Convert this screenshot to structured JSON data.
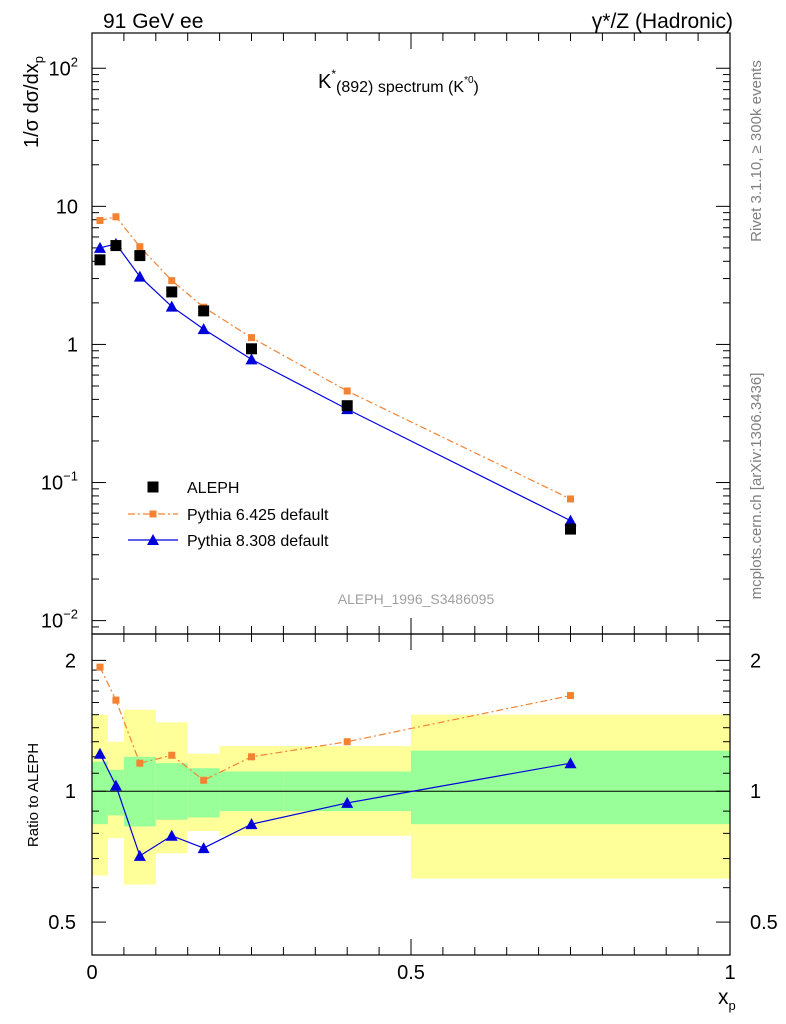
{
  "header": {
    "left": "91 GeV ee",
    "right": "γ*/Z (Hadronic)"
  },
  "side_labels": {
    "rivet": "Rivet 3.1.10, ≥ 300k events",
    "mcplots": "mcplots.cern.ch [arXiv:1306.3436]"
  },
  "analysis_tag": "ALEPH_1996_S3486095",
  "chart_data": [
    {
      "type": "scatter",
      "panel": "main",
      "title": "K*(892) spectrum (K*0)",
      "title_parts": {
        "main": "K",
        "sup1": "*",
        "paren": "(892) spectrum (K",
        "sup2": "*0",
        "close": ")"
      },
      "ylabel": "1/σ dσ/dx_p",
      "ylabel_parts": {
        "base": "1/σ dσ/dx",
        "sub": "p"
      },
      "xlim": [
        0,
        1
      ],
      "ylim": [
        0.008,
        180
      ],
      "yscale": "log",
      "yticks": [
        {
          "v": 0.01,
          "base": "10",
          "exp": "−2"
        },
        {
          "v": 0.1,
          "base": "10",
          "exp": "−1"
        },
        {
          "v": 1,
          "label": "1"
        },
        {
          "v": 10,
          "label": "10"
        },
        {
          "v": 100,
          "base": "10",
          "exp": "2"
        }
      ],
      "legend_position": "lower-left",
      "series": [
        {
          "name": "ALEPH",
          "marker": "square",
          "color": "#000000",
          "x": [
            0.0125,
            0.0375,
            0.075,
            0.125,
            0.175,
            0.25,
            0.4,
            0.75
          ],
          "y": [
            4.1,
            5.2,
            4.4,
            2.4,
            1.75,
            0.93,
            0.36,
            0.046
          ]
        },
        {
          "name": "Pythia 6.425 default",
          "marker": "square-small",
          "line": "dash-dot",
          "color": "#f58231",
          "x": [
            0.0125,
            0.0375,
            0.075,
            0.125,
            0.175,
            0.25,
            0.4,
            0.75
          ],
          "y": [
            7.9,
            8.4,
            5.1,
            2.9,
            1.86,
            1.12,
            0.46,
            0.076
          ]
        },
        {
          "name": "Pythia 8.308 default",
          "marker": "triangle",
          "line": "solid",
          "color": "#0000dd",
          "x": [
            0.0125,
            0.0375,
            0.075,
            0.125,
            0.175,
            0.25,
            0.4,
            0.75
          ],
          "y": [
            5.0,
            5.35,
            3.1,
            1.88,
            1.29,
            0.78,
            0.34,
            0.053
          ]
        }
      ]
    },
    {
      "type": "scatter",
      "panel": "ratio",
      "ylabel": "Ratio to ALEPH",
      "xlabel": "x_p",
      "xlabel_parts": {
        "base": "x",
        "sub": "p"
      },
      "xlim": [
        0,
        1
      ],
      "ylim": [
        0.42,
        2.3
      ],
      "yscale": "log",
      "xticks": [
        {
          "v": 0,
          "label": "0"
        },
        {
          "v": 0.5,
          "label": "0.5"
        },
        {
          "v": 1,
          "label": "1"
        }
      ],
      "yticks": [
        {
          "v": 0.5,
          "label": "0.5"
        },
        {
          "v": 1,
          "label": "1"
        },
        {
          "v": 2,
          "label": "2"
        }
      ],
      "bands": [
        {
          "x0": 0.0,
          "x1": 0.025,
          "y_lo": 0.64,
          "y_hi": 1.5,
          "g_lo": 0.84,
          "g_hi": 1.17
        },
        {
          "x0": 0.025,
          "x1": 0.05,
          "y_lo": 0.78,
          "y_hi": 1.3,
          "g_lo": 0.88,
          "g_hi": 1.12
        },
        {
          "x0": 0.05,
          "x1": 0.1,
          "y_lo": 0.61,
          "y_hi": 1.54,
          "g_lo": 0.83,
          "g_hi": 1.2
        },
        {
          "x0": 0.1,
          "x1": 0.15,
          "y_lo": 0.72,
          "y_hi": 1.44,
          "g_lo": 0.86,
          "g_hi": 1.16
        },
        {
          "x0": 0.15,
          "x1": 0.2,
          "y_lo": 0.81,
          "y_hi": 1.22,
          "g_lo": 0.87,
          "g_hi": 1.13
        },
        {
          "x0": 0.2,
          "x1": 0.3,
          "y_lo": 0.79,
          "y_hi": 1.27,
          "g_lo": 0.9,
          "g_hi": 1.11
        },
        {
          "x0": 0.3,
          "x1": 0.5,
          "y_lo": 0.79,
          "y_hi": 1.27,
          "g_lo": 0.9,
          "g_hi": 1.11
        },
        {
          "x0": 0.5,
          "x1": 1.0,
          "y_lo": 0.63,
          "y_hi": 1.5,
          "g_lo": 0.84,
          "g_hi": 1.24
        }
      ],
      "series": [
        {
          "name": "Pythia 6.425 default",
          "marker": "square-small",
          "line": "dash-dot",
          "color": "#f58231",
          "x": [
            0.0125,
            0.0375,
            0.075,
            0.125,
            0.175,
            0.25,
            0.4,
            0.75
          ],
          "y": [
            1.93,
            1.62,
            1.16,
            1.21,
            1.06,
            1.2,
            1.3,
            1.66
          ]
        },
        {
          "name": "Pythia 8.308 default",
          "marker": "triangle",
          "line": "solid",
          "color": "#0000dd",
          "x": [
            0.0125,
            0.0375,
            0.075,
            0.125,
            0.175,
            0.25,
            0.4,
            0.75
          ],
          "y": [
            1.22,
            1.03,
            0.71,
            0.79,
            0.74,
            0.84,
            0.94,
            1.16
          ]
        }
      ]
    }
  ]
}
